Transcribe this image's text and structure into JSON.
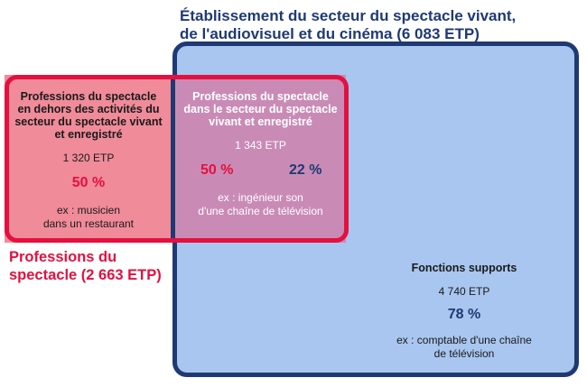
{
  "title": {
    "line1": "Établissement du secteur du spectacle vivant,",
    "line2": "de l'audiovisuel et du cinéma (6 083 ETP)"
  },
  "red_set": {
    "label_line1": "Professions du",
    "label_line2": "spectacle (2 663 ETP)"
  },
  "left_region": {
    "heading_lines": [
      "Professions du spectacle",
      "en dehors des activités du",
      "secteur du spectacle vivant",
      "et enregistré"
    ],
    "etp": "1 320 ETP",
    "percent": "50 %",
    "example_lines": [
      "ex : musicien",
      "dans un restaurant"
    ]
  },
  "overlap_region": {
    "heading_lines": [
      "Professions du spectacle",
      "dans le secteur du spectacle",
      "vivant et enregistré"
    ],
    "etp": "1 343 ETP",
    "percent_red": "50 %",
    "percent_blue": "22 %",
    "example_lines": [
      "ex : ingénieur son",
      "d'une chaîne de télévision"
    ]
  },
  "support_region": {
    "heading": "Fonctions supports",
    "etp": "4 740 ETP",
    "percent": "78 %",
    "example_lines": [
      "ex : comptable d'une chaîne",
      "de télévision"
    ]
  },
  "colors": {
    "blue_dark": "#1f3a73",
    "blue_fill": "#a8c6ef",
    "red": "#e4103f",
    "pink_fill": "#f08b99",
    "overlap_fill": "#c98bb6"
  }
}
